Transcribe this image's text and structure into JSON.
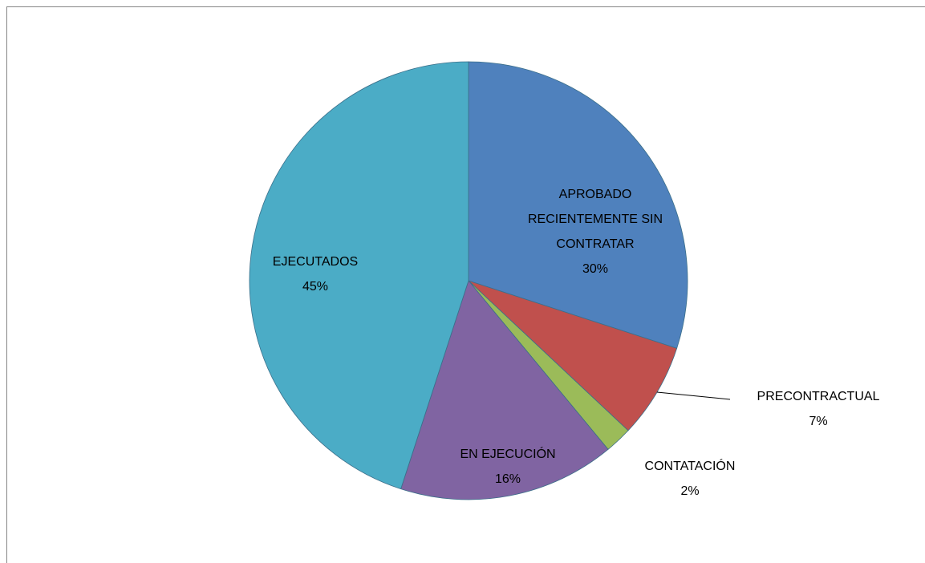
{
  "chart_data": {
    "type": "pie",
    "categories": [
      "APROBADO RECIENTEMENTE SIN CONTRATAR",
      "PRECONTRACTUAL",
      "CONTATACIÓN",
      "EN EJECUCIÓN",
      "EJECUTADOS"
    ],
    "values": [
      30,
      7,
      2,
      16,
      45
    ],
    "value_labels": [
      "30%",
      "7%",
      "2%",
      "16%",
      "45%"
    ],
    "colors": [
      "#4f81bd",
      "#c0504d",
      "#9bbb59",
      "#8064a2",
      "#4bacc6"
    ]
  }
}
